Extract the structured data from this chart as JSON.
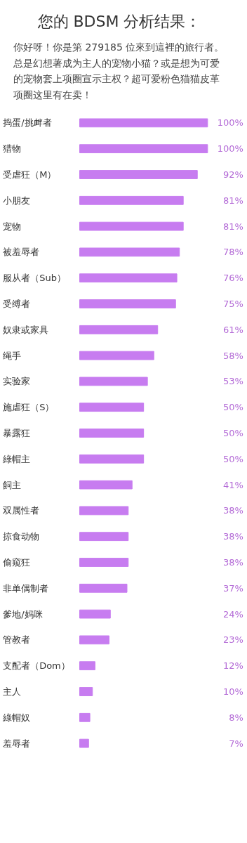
{
  "chart_data": {
    "type": "bar",
    "orientation": "horizontal",
    "title": "您的 BDSM 分析结果：",
    "subtitle": "你好呀！你是第 279185 位來到這裡的旅行者。总是幻想著成为主人的宠物小猫？或是想为可爱的宠物套上项圈宣示主权？超可爱粉色猫猫皮革项圈这里有在卖！",
    "categories": [
      "捣蛋/挑衅者",
      "猎物",
      "受虐狂（M）",
      "小朋友",
      "宠物",
      "被羞辱者",
      "服从者（Sub）",
      "受缚者",
      "奴隶或家具",
      "绳手",
      "实验家",
      "施虐狂（S）",
      "暴露狂",
      "綠帽主",
      "飼主",
      "双属性者",
      "掠食动物",
      "偷窥狂",
      "非单偶制者",
      "爹地/妈咪",
      "管教者",
      "支配者（Dom）",
      "主人",
      "綠帽奴",
      "羞辱者"
    ],
    "values": [
      100,
      100,
      92,
      81,
      81,
      78,
      76,
      75,
      61,
      58,
      53,
      50,
      50,
      50,
      41,
      38,
      38,
      38,
      37,
      24,
      23,
      12,
      10,
      8,
      7
    ],
    "value_labels": [
      "100%",
      "100%",
      "92%",
      "81%",
      "81%",
      "78%",
      "76%",
      "75%",
      "61%",
      "58%",
      "53%",
      "50%",
      "50%",
      "50%",
      "41%",
      "38%",
      "38%",
      "38%",
      "37%",
      "24%",
      "23%",
      "12%",
      "10%",
      "8%",
      "7%"
    ],
    "color": "#c77cf0",
    "grid": false
  }
}
